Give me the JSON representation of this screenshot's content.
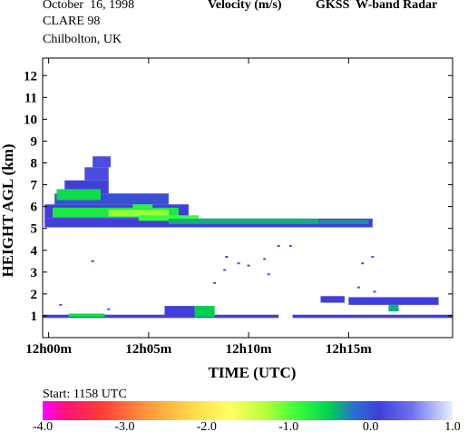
{
  "header": {
    "date": "October  16, 1998",
    "campaign": "CLARE 98",
    "site": "Chilbolton, UK",
    "quantity": "Velocity (m/s)",
    "instrument": "GKSS  W-band Radar"
  },
  "footer": {
    "start": "Start: 1158 UTC"
  },
  "chart_data": {
    "type": "heatmap",
    "xlabel": "TIME (UTC)",
    "ylabel": "HEIGHT AGL (km)",
    "x_ticks": [
      "12h00m",
      "12h05m",
      "12h10m",
      "12h15m"
    ],
    "x_tick_minutes": [
      0,
      5,
      10,
      15
    ],
    "xlim_minutes": [
      -0.3,
      20.2
    ],
    "y_ticks": [
      1,
      2,
      3,
      4,
      5,
      6,
      7,
      8,
      9,
      10,
      11,
      12
    ],
    "ylim": [
      0,
      12.8
    ],
    "colorbar": {
      "labels": [
        "-4.0",
        "-3.0",
        "-2.0",
        "-1.0",
        "0.0",
        "1.0"
      ],
      "range": [
        -4.0,
        1.0
      ],
      "stops": [
        {
          "v": -4.0,
          "c": "#ff00ff"
        },
        {
          "v": -3.7,
          "c": "#ff1470"
        },
        {
          "v": -3.3,
          "c": "#ff3a3a"
        },
        {
          "v": -2.8,
          "c": "#ff8c3a"
        },
        {
          "v": -2.2,
          "c": "#ffd84a"
        },
        {
          "v": -1.7,
          "c": "#ffff66"
        },
        {
          "v": -1.3,
          "c": "#b8ff3a"
        },
        {
          "v": -0.9,
          "c": "#3cff3c"
        },
        {
          "v": -0.5,
          "c": "#00d050"
        },
        {
          "v": -0.2,
          "c": "#2a6fd0"
        },
        {
          "v": 0.1,
          "c": "#4040d8"
        },
        {
          "v": 0.5,
          "c": "#7070f0"
        },
        {
          "v": 1.0,
          "c": "#e8f0ff"
        }
      ]
    },
    "echoes": [
      {
        "t0": -0.2,
        "t1": 16.2,
        "h0": 5.05,
        "h1": 5.45,
        "v": 0.1
      },
      {
        "t0": -0.2,
        "t1": 7.0,
        "h0": 5.45,
        "h1": 6.1,
        "v": 0.1
      },
      {
        "t0": 0.3,
        "t1": 6.0,
        "h0": 6.1,
        "h1": 6.6,
        "v": 0.0
      },
      {
        "t0": 0.8,
        "t1": 3.0,
        "h0": 6.6,
        "h1": 7.2,
        "v": 0.1
      },
      {
        "t0": 1.8,
        "t1": 3.0,
        "h0": 7.2,
        "h1": 7.8,
        "v": 0.2
      },
      {
        "t0": 2.2,
        "t1": 3.1,
        "h0": 7.8,
        "h1": 8.3,
        "v": 0.2
      },
      {
        "t0": 0.4,
        "t1": 2.6,
        "h0": 6.3,
        "h1": 6.8,
        "v": -0.6
      },
      {
        "t0": 0.2,
        "t1": 6.5,
        "h0": 5.5,
        "h1": 5.95,
        "v": -0.7
      },
      {
        "t0": 3.0,
        "t1": 6.0,
        "h0": 5.55,
        "h1": 5.85,
        "v": -1.2
      },
      {
        "t0": 4.5,
        "t1": 7.5,
        "h0": 5.35,
        "h1": 5.6,
        "v": -0.9
      },
      {
        "t0": 6.0,
        "t1": 13.5,
        "h0": 5.2,
        "h1": 5.45,
        "v": -0.4
      },
      {
        "t0": 13.5,
        "t1": 16.0,
        "h0": 5.2,
        "h1": 5.4,
        "v": -0.3
      },
      {
        "t0": 4.2,
        "t1": 5.2,
        "h0": 5.9,
        "h1": 6.1,
        "v": -0.8
      },
      {
        "t0": -0.3,
        "t1": 11.5,
        "h0": 0.9,
        "h1": 1.05,
        "v": 0.1
      },
      {
        "t0": 12.2,
        "t1": 20.2,
        "h0": 0.9,
        "h1": 1.05,
        "v": 0.1
      },
      {
        "t0": 1.0,
        "t1": 2.8,
        "h0": 0.95,
        "h1": 1.1,
        "v": -0.6
      },
      {
        "t0": 5.8,
        "t1": 7.3,
        "h0": 0.95,
        "h1": 1.45,
        "v": 0.1
      },
      {
        "t0": 7.3,
        "t1": 8.3,
        "h0": 0.95,
        "h1": 1.45,
        "v": -0.5
      },
      {
        "t0": 15.0,
        "t1": 19.5,
        "h0": 1.5,
        "h1": 1.85,
        "v": 0.1
      },
      {
        "t0": 17.0,
        "t1": 17.5,
        "h0": 1.2,
        "h1": 1.5,
        "v": -0.4
      },
      {
        "t0": 13.6,
        "t1": 14.8,
        "h0": 1.6,
        "h1": 1.9,
        "v": 0.1
      }
    ],
    "specks": [
      {
        "t": 0.6,
        "h": 1.5,
        "v": 0.2
      },
      {
        "t": 2.2,
        "h": 3.5,
        "v": 0.1
      },
      {
        "t": 3.0,
        "h": 1.3,
        "v": 0.2
      },
      {
        "t": 8.3,
        "h": 2.5,
        "v": 0.2
      },
      {
        "t": 8.8,
        "h": 3.1,
        "v": 0.2
      },
      {
        "t": 8.9,
        "h": 3.7,
        "v": 0.1
      },
      {
        "t": 10.0,
        "h": 3.3,
        "v": 0.2
      },
      {
        "t": 10.8,
        "h": 3.6,
        "v": 0.2
      },
      {
        "t": 11.0,
        "h": 2.9,
        "v": 0.2
      },
      {
        "t": 11.5,
        "h": 4.2,
        "v": 0.2
      },
      {
        "t": 12.1,
        "h": 4.2,
        "v": 0.2
      },
      {
        "t": 15.7,
        "h": 3.4,
        "v": 0.2
      },
      {
        "t": 16.2,
        "h": 3.7,
        "v": 0.2
      },
      {
        "t": 9.5,
        "h": 3.4,
        "v": 0.2
      },
      {
        "t": 15.5,
        "h": 2.3,
        "v": 0.2
      },
      {
        "t": 16.3,
        "h": 2.1,
        "v": 0.2
      }
    ]
  }
}
